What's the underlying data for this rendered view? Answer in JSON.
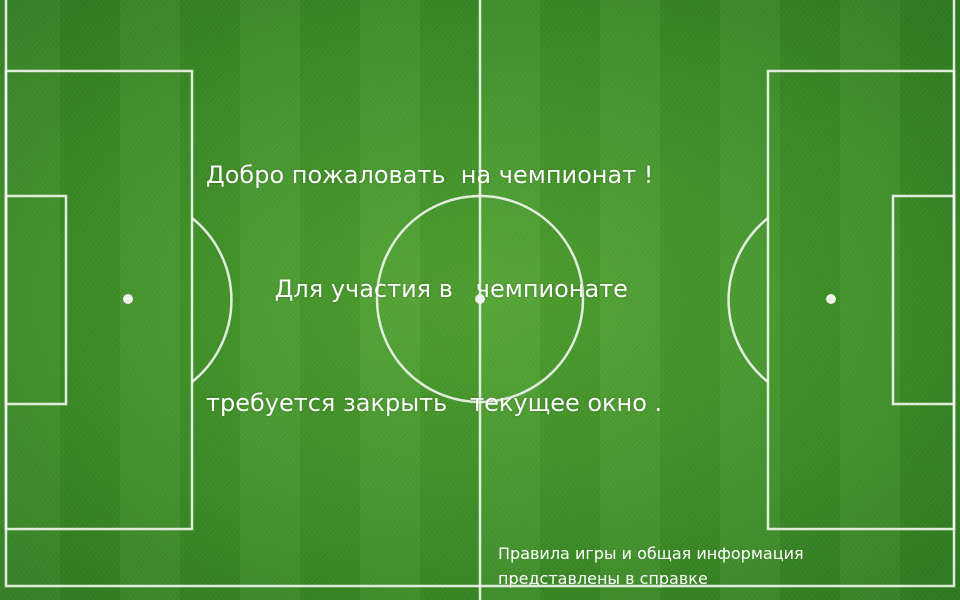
{
  "welcome": {
    "line1": "Добро пожаловать  на чемпионат !",
    "line2": "         Для участия в   чемпионате",
    "line3": "требуется закрыть   текущее окно ."
  },
  "help_note": {
    "line1": "Правила игры и общая информация",
    "line2": "представлены в справке"
  },
  "colors": {
    "grass": "#3f9228",
    "lines": "#ffffff"
  }
}
